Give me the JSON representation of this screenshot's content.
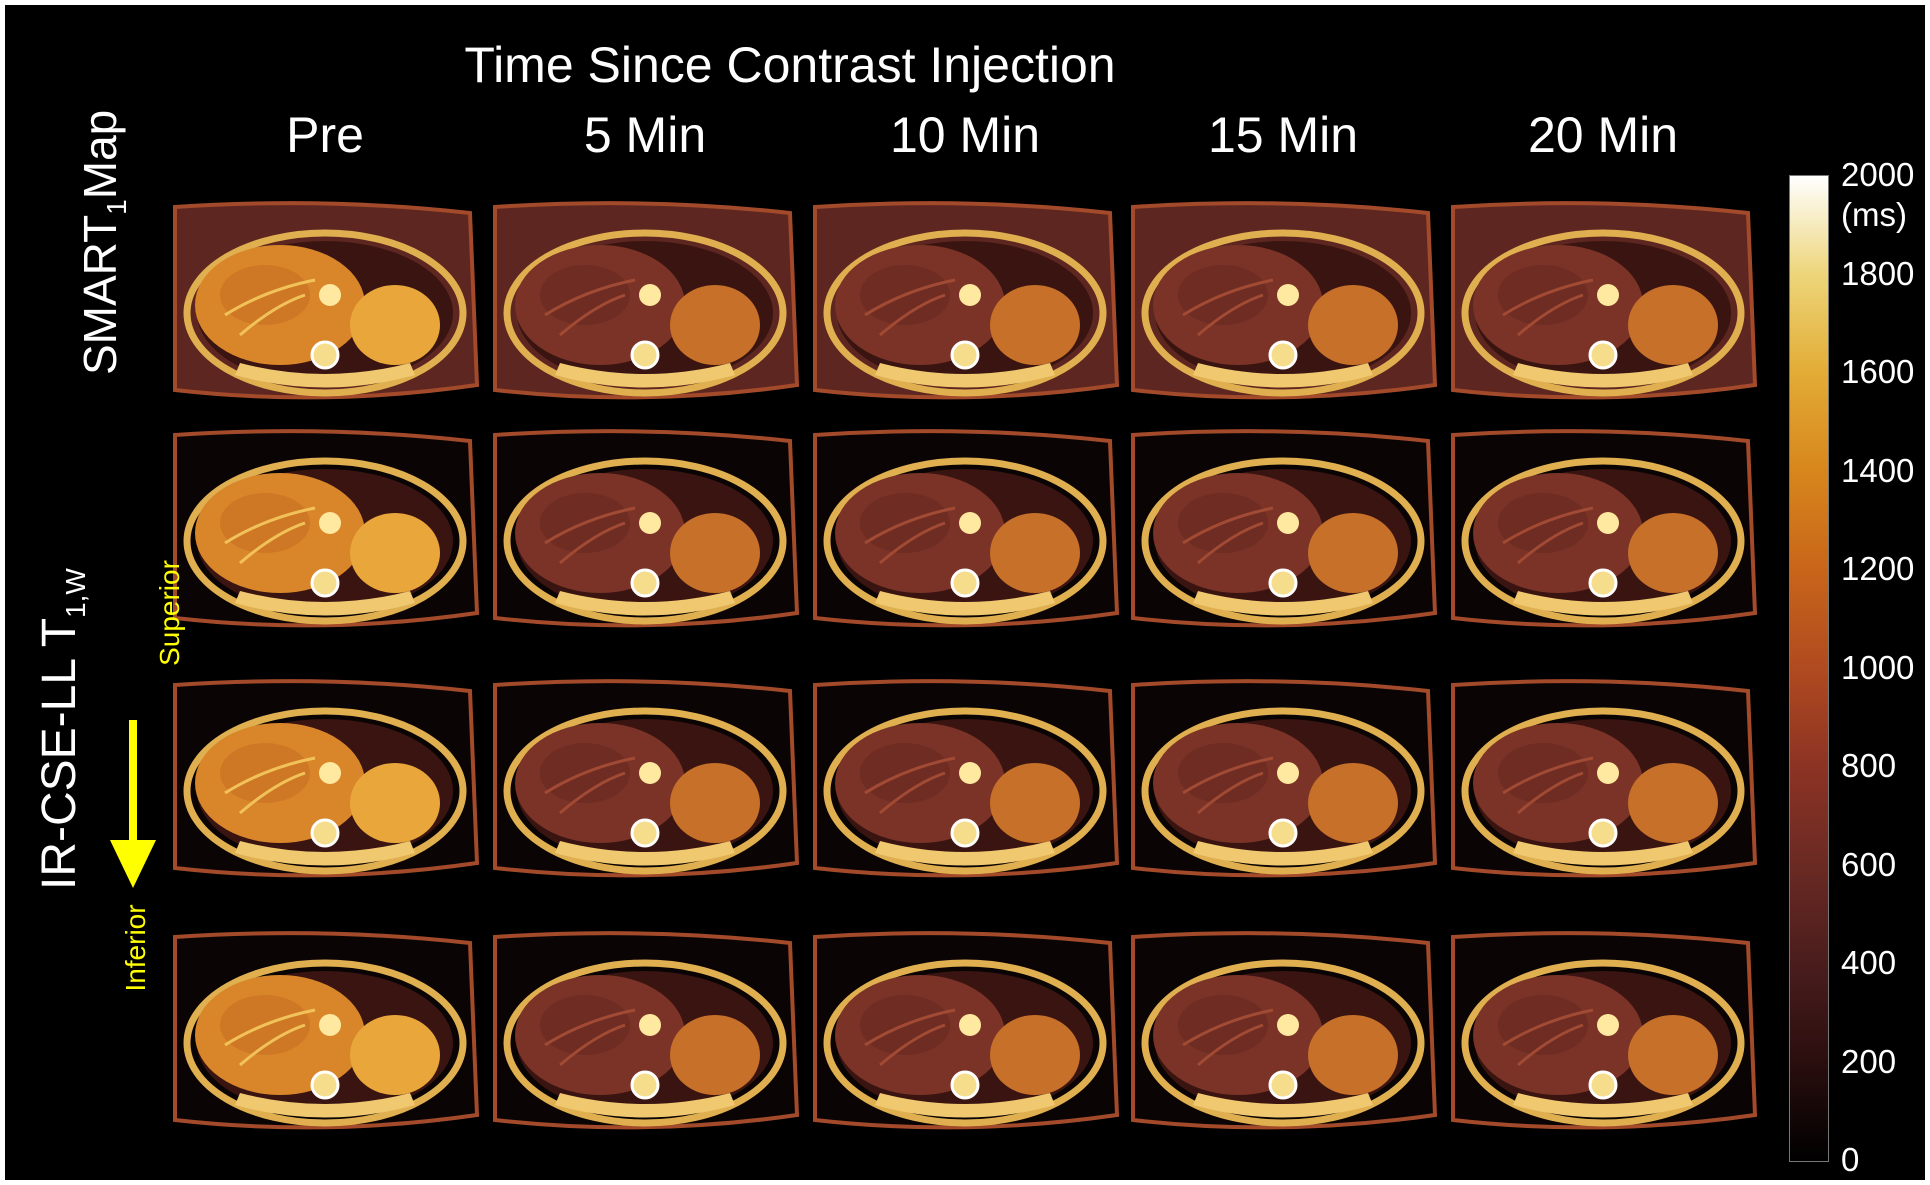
{
  "figure": {
    "title": "Time Since Contrast Injection",
    "columns": [
      "Pre",
      "5 Min",
      "10 Min",
      "15 Min",
      "20 Min"
    ],
    "row_labels": {
      "smart": {
        "main": "SMART",
        "sub": "1",
        "suffix": "Map"
      },
      "ircse": {
        "main": "IR-CSE-LL T",
        "sub": "1,W"
      },
      "superior": "Superior",
      "inferior": "Inferior"
    },
    "arrow_color": "#ffff00",
    "colorbar": {
      "ticks": [
        "2000",
        "1800",
        "1600",
        "1400",
        "1200",
        "1000",
        "800",
        "600",
        "400",
        "200",
        "0"
      ],
      "unit": "(ms)",
      "colors": [
        "#000000",
        "#4a1d1d",
        "#8c3324",
        "#c8651a",
        "#e2ac35",
        "#ffffff"
      ]
    }
  }
}
